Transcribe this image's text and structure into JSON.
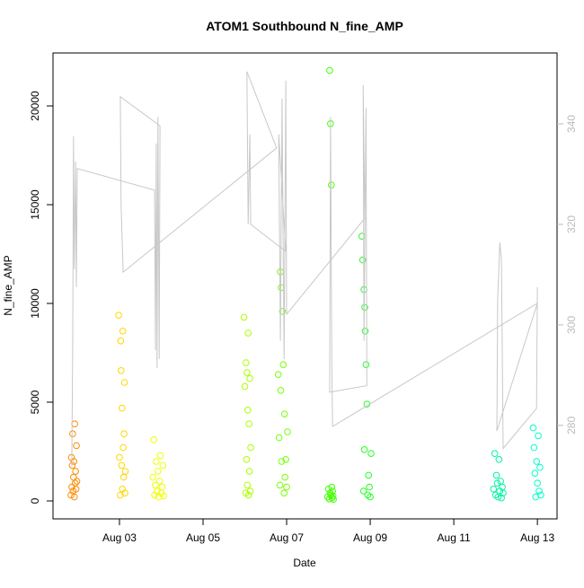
{
  "chart_data": {
    "type": "scatter",
    "title": "ATOM1 Southbound N_fine_AMP",
    "x_label": "Date",
    "y_label": "N_fine_AMP",
    "xlim": [
      1.41,
      13.47
    ],
    "xticks": [
      {
        "value": 3,
        "label": "Aug 03"
      },
      {
        "value": 5,
        "label": "Aug 05"
      },
      {
        "value": 7,
        "label": "Aug 07"
      },
      {
        "value": 9,
        "label": "Aug 09"
      },
      {
        "value": 11,
        "label": "Aug 11"
      },
      {
        "value": 13,
        "label": "Aug 13"
      }
    ],
    "ylim": [
      -909,
      22682
    ],
    "yticks": [
      0,
      5000,
      10000,
      15000,
      20000
    ],
    "y2lim": [
      261.4,
      354.1
    ],
    "y2ticks": [
      280,
      300,
      320,
      340
    ],
    "series": [
      {
        "color": "#ff8c00",
        "x": [
          1.84,
          1.85,
          1.86,
          1.87,
          1.88,
          1.89,
          1.9,
          1.91,
          1.92,
          1.93,
          1.94,
          1.95,
          1.96,
          1.97,
          1.98
        ],
        "values": [
          300,
          2200,
          700,
          1800,
          3400,
          500,
          1200,
          2000,
          200,
          3900,
          900,
          1500,
          600,
          2800,
          1000
        ]
      },
      {
        "color": "#ffd700",
        "x": [
          2.98,
          3.0,
          3.02,
          3.03,
          3.04,
          3.05,
          3.06,
          3.07,
          3.08,
          3.09,
          3.1,
          3.11,
          3.12,
          3.13,
          3.14
        ],
        "values": [
          9400,
          2200,
          300,
          8100,
          6600,
          1800,
          4700,
          600,
          8600,
          2700,
          1200,
          3400,
          6000,
          400,
          1500
        ]
      },
      {
        "color": "#eeff00",
        "x": [
          3.8,
          3.82,
          3.84,
          3.86,
          3.88,
          3.9,
          3.92,
          3.94,
          3.96,
          3.98,
          4.0,
          4.02,
          4.04,
          4.06
        ],
        "values": [
          1200,
          3100,
          300,
          800,
          2000,
          500,
          1500,
          200,
          1000,
          2300,
          400,
          700,
          1800,
          250
        ]
      },
      {
        "color": "#aaff00",
        "x": [
          5.98,
          6.0,
          6.02,
          6.03,
          6.04,
          6.05,
          6.06,
          6.07,
          6.08,
          6.09,
          6.1,
          6.11,
          6.12,
          6.13,
          6.14
        ],
        "values": [
          9300,
          5800,
          400,
          7000,
          2100,
          6500,
          800,
          4600,
          8500,
          300,
          3900,
          1500,
          6200,
          500,
          2700
        ]
      },
      {
        "color": "#77ff00",
        "x": [
          6.8,
          6.82,
          6.84,
          6.85,
          6.86,
          6.87,
          6.88,
          6.9,
          6.92,
          6.94,
          6.95,
          6.96,
          6.98,
          7.0,
          7.02
        ],
        "values": [
          6400,
          3200,
          800,
          11600,
          5600,
          10800,
          2000,
          9600,
          6900,
          400,
          4400,
          1200,
          2100,
          700,
          3500
        ]
      },
      {
        "color": "#44ff00",
        "x": [
          7.98,
          8.0,
          8.02,
          8.03,
          8.04,
          8.05,
          8.06,
          8.07,
          8.08,
          8.09,
          8.1,
          8.11,
          8.12
        ],
        "values": [
          200,
          600,
          100,
          21800,
          400,
          19100,
          300,
          16000,
          700,
          150,
          500,
          250,
          80
        ]
      },
      {
        "color": "#22ff22",
        "x": [
          8.8,
          8.82,
          8.84,
          8.85,
          8.86,
          8.87,
          8.88,
          8.9,
          8.92,
          8.94,
          8.96,
          8.98,
          9.0,
          9.02
        ],
        "values": [
          13400,
          12200,
          500,
          10700,
          2600,
          9800,
          8600,
          6900,
          4900,
          300,
          1300,
          700,
          200,
          2400
        ]
      },
      {
        "color": "#00f5a0",
        "x": [
          11.95,
          11.98,
          12.0,
          12.02,
          12.04,
          12.06,
          12.08,
          12.1,
          12.12,
          12.14,
          12.16,
          12.18
        ],
        "values": [
          600,
          2400,
          300,
          1300,
          900,
          200,
          2100,
          500,
          1000,
          150,
          700,
          400
        ]
      },
      {
        "color": "#00ffc8",
        "x": [
          12.9,
          12.92,
          12.94,
          12.96,
          12.98,
          13.0,
          13.02,
          13.04,
          13.06,
          13.08
        ],
        "values": [
          3700,
          2700,
          1400,
          200,
          2000,
          900,
          3300,
          500,
          1700,
          300
        ]
      },
      {
        "type": "line",
        "axis": "y2",
        "color": "#c8c8c8",
        "x": [
          1.86,
          1.88,
          1.9,
          1.92,
          1.95,
          1.97,
          1.99,
          3.84,
          3.86,
          3.88,
          3.9,
          3.92,
          3.95,
          3.97,
          3.02,
          3.04,
          3.09,
          6.76,
          6.05,
          6.08,
          6.12,
          6.14,
          6.98,
          6.81,
          6.85,
          6.89,
          6.94,
          6.98,
          7.0,
          8.87,
          8.83,
          8.85,
          8.9,
          8.92,
          8.03,
          8.05,
          8.08,
          8.1,
          13.0,
          12.03,
          12.05,
          12.1,
          12.14,
          12.18,
          12.98,
          13.0
        ],
        "values": [
          271.8,
          295.4,
          337.5,
          311.1,
          332.5,
          307.5,
          331.1,
          326.8,
          295.0,
          336.1,
          291.4,
          341.4,
          293.2,
          339.6,
          345.4,
          323.6,
          310.5,
          335.2,
          350.4,
          320.0,
          337.9,
          320.0,
          314.6,
          337.9,
          296.8,
          345.0,
          293.2,
          348.6,
          302.1,
          321.2,
          347.7,
          296.8,
          343.2,
          287.9,
          286.6,
          341.4,
          291.4,
          279.8,
          304.3,
          278.9,
          304.8,
          316.4,
          312.9,
          275.4,
          283.4,
          307.5
        ]
      }
    ]
  }
}
